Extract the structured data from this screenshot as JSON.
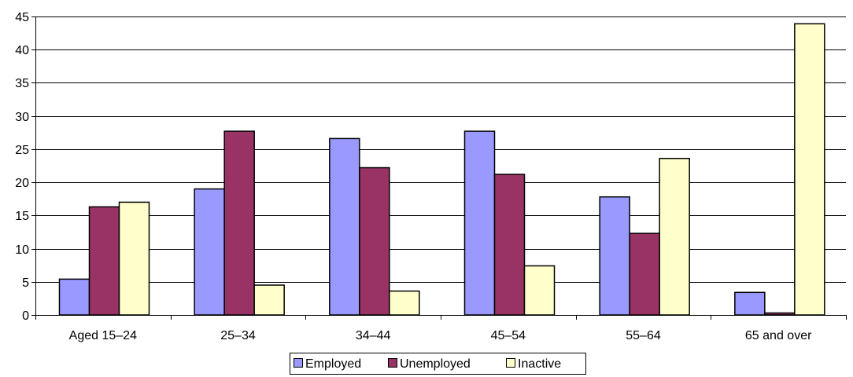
{
  "chart_data": {
    "type": "bar",
    "title": "",
    "xlabel": "",
    "ylabel": "",
    "ylim": [
      0,
      45
    ],
    "yticks": [
      0,
      5,
      10,
      15,
      20,
      25,
      30,
      35,
      40,
      45
    ],
    "grid": "horizontal",
    "legend_position": "bottom",
    "categories": [
      "Aged 15–24",
      "25–34",
      "34–44",
      "45–54",
      "55–64",
      "65 and over"
    ],
    "series": [
      {
        "name": "Employed",
        "color": "#9999ff",
        "values": [
          5.4,
          19.0,
          26.6,
          27.7,
          17.8,
          3.4
        ]
      },
      {
        "name": "Unemployed",
        "color": "#993366",
        "values": [
          16.3,
          27.7,
          22.2,
          21.2,
          12.3,
          0.3
        ]
      },
      {
        "name": "Inactive",
        "color": "#ffffcc",
        "values": [
          17.0,
          4.5,
          3.6,
          7.4,
          23.6,
          43.9
        ]
      }
    ]
  }
}
